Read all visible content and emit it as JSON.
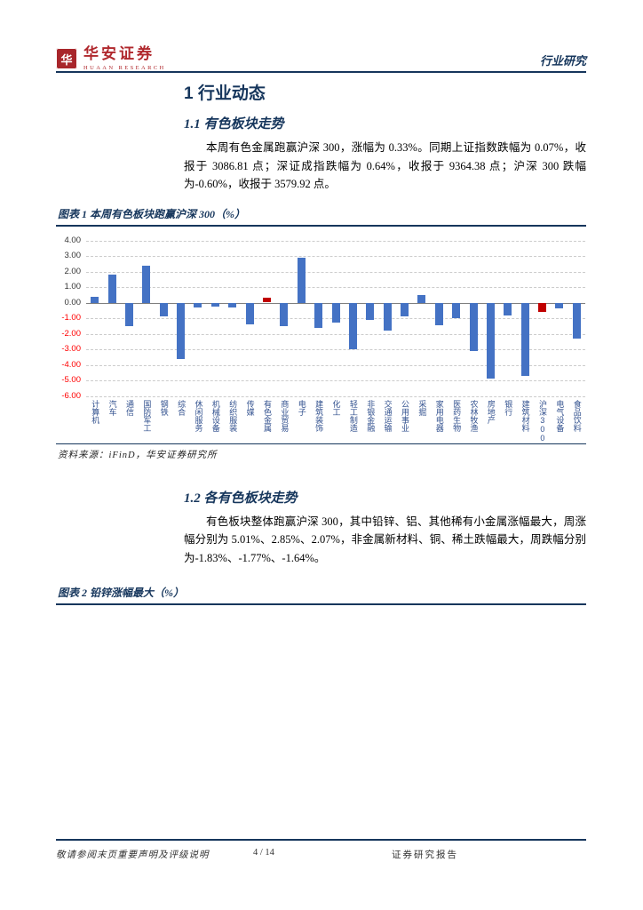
{
  "header": {
    "logo_cn": "华安证券",
    "logo_en": "HUAAN RESEARCH",
    "seal_char": "华",
    "category": "行业研究"
  },
  "body": {
    "h1": "1 行业动态",
    "h2_1": "1.1 有色板块走势",
    "para1": "本周有色金属跑赢沪深 300，涨幅为 0.33%。同期上证指数跌幅为 0.07%，收报于 3086.81 点；深证成指跌幅为 0.64%，收报于 9364.38 点；沪深 300 跌幅为-0.60%，收报于 3579.92 点。",
    "chart1_caption": "图表 1 本周有色板块跑赢沪深 300（%）",
    "source1": "资料来源：iFinD，华安证券研究所",
    "h2_2": "1.2 各有色板块走势",
    "para2": "有色板块整体跑赢沪深 300，其中铅锌、铝、其他稀有小金属涨幅最大，周涨幅分别为 5.01%、2.85%、2.07%，非金属新材料、铜、稀土跌幅最大，周跌幅分别为-1.83%、-1.77%、-1.64%。",
    "chart2_caption": "图表 2 铅锌涨幅最大（%）"
  },
  "footer": {
    "left": "敬请参阅末页重要声明及评级说明",
    "page": "4 / 14",
    "right": "证券研究报告"
  },
  "chart_data": {
    "type": "bar",
    "title": "本周有色板块跑赢沪深300（%）",
    "categories": [
      "计算机",
      "汽车",
      "通信",
      "国防军工",
      "钢铁",
      "综合",
      "休闲服务",
      "机械设备",
      "纺织服装",
      "传媒",
      "有色金属",
      "商业贸易",
      "电子",
      "建筑装饰",
      "化工",
      "轻工制造",
      "非银金融",
      "交通运输",
      "公用事业",
      "采掘",
      "家用电器",
      "医药生物",
      "农林牧渔",
      "房地产",
      "银行",
      "建筑材料",
      "沪深300",
      "电气设备",
      "食品饮料"
    ],
    "values": [
      0.4,
      1.8,
      -1.5,
      2.4,
      -0.9,
      -3.6,
      -0.3,
      -0.28,
      -0.3,
      -1.4,
      0.33,
      -1.5,
      2.9,
      -1.6,
      -1.3,
      -3.0,
      -1.1,
      -1.8,
      -0.9,
      0.5,
      -1.45,
      -1.0,
      -3.1,
      -4.9,
      -0.8,
      -4.7,
      -0.6,
      -0.35,
      -2.3
    ],
    "ylim": [
      -6,
      4
    ],
    "ytick_step": 1,
    "grid": true,
    "legend": "none",
    "bar_color": "#4472c4",
    "highlight_color": "#c00000",
    "highlight_indices": [
      10,
      26
    ],
    "negative_tick_color": "#ff0000",
    "xlabel": "",
    "ylabel": ""
  }
}
